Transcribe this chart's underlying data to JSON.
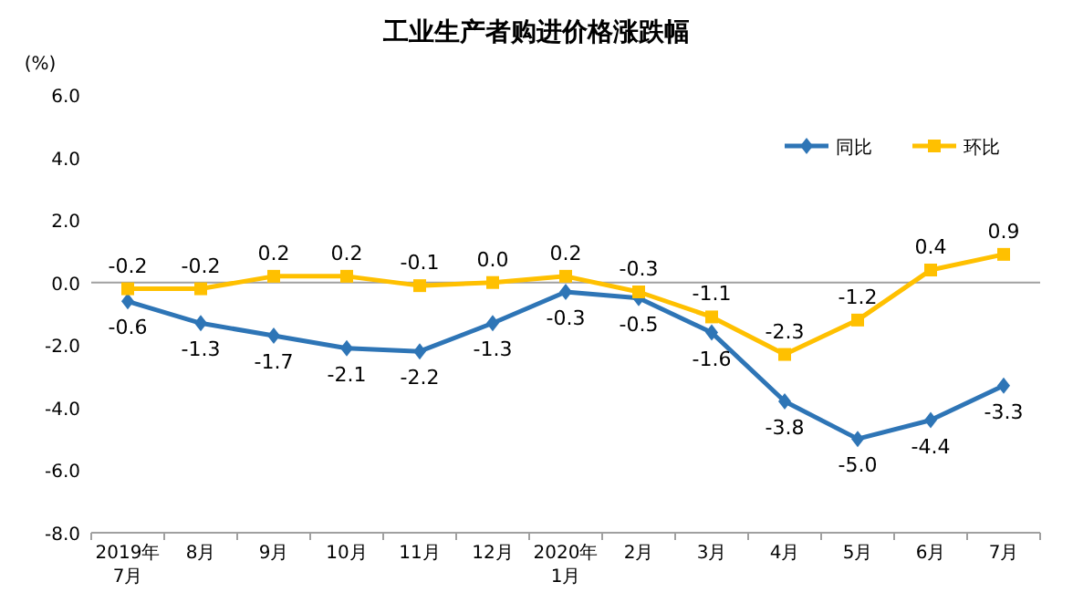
{
  "chart_data": {
    "type": "line",
    "title": "工业生产者购进价格涨跌幅",
    "ylabel": "(%)",
    "categories": [
      "2019年\n7月",
      "8月",
      "9月",
      "10月",
      "11月",
      "12月",
      "2020年\n1月",
      "2月",
      "3月",
      "4月",
      "5月",
      "6月",
      "7月"
    ],
    "series": [
      {
        "name": "同比",
        "color": "#2e75b6",
        "marker": "diamond",
        "values": [
          -0.6,
          -1.3,
          -1.7,
          -2.1,
          -2.2,
          -1.3,
          -0.3,
          -0.5,
          -1.6,
          -3.8,
          -5.0,
          -4.4,
          -3.3
        ],
        "value_labels": [
          "-0.6",
          "-1.3",
          "-1.7",
          "-2.1",
          "-2.2",
          "-1.3",
          "-0.3",
          "-0.5",
          "-1.6",
          "-3.8",
          "-5.0",
          "-4.4",
          "-3.3"
        ]
      },
      {
        "name": "环比",
        "color": "#ffc000",
        "marker": "square",
        "values": [
          -0.2,
          -0.2,
          0.2,
          0.2,
          -0.1,
          0.0,
          0.2,
          -0.3,
          -1.1,
          -2.3,
          -1.2,
          0.4,
          0.9
        ],
        "value_labels": [
          "-0.2",
          "-0.2",
          "0.2",
          "0.2",
          "-0.1",
          "0.0",
          "0.2",
          "-0.3",
          "-1.1",
          "-2.3",
          "-1.2",
          "0.4",
          "0.9"
        ]
      }
    ],
    "ylim": [
      -8,
      6
    ],
    "yticks": [
      {
        "value": -8,
        "label": "-8.0"
      },
      {
        "value": -6,
        "label": "-6.0"
      },
      {
        "value": -4,
        "label": "-4.0"
      },
      {
        "value": -2,
        "label": "-2.0"
      },
      {
        "value": 0,
        "label": "0.0"
      },
      {
        "value": 2,
        "label": "2.0"
      },
      {
        "value": 4,
        "label": "4.0"
      },
      {
        "value": 6,
        "label": "6.0"
      }
    ],
    "legend": "top right"
  }
}
